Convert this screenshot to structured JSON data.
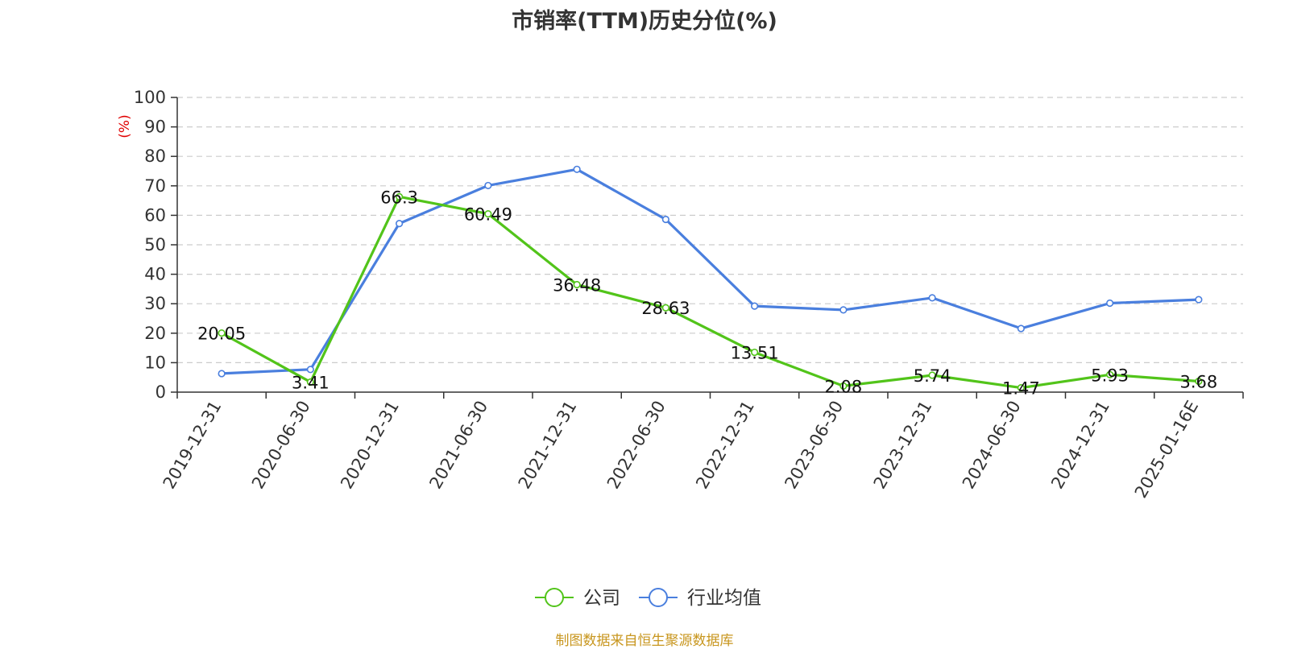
{
  "chart_data": {
    "type": "line",
    "title": "市销率(TTM)历史分位(%)",
    "ylabel": "(%)",
    "xlabel": "",
    "ylim": [
      0,
      100
    ],
    "y_ticks": [
      0,
      10,
      20,
      30,
      40,
      50,
      60,
      70,
      80,
      90,
      100
    ],
    "grid": true,
    "legend_position": "bottom-center",
    "categories": [
      "2019-12-31",
      "2020-06-30",
      "2020-12-31",
      "2021-06-30",
      "2021-12-31",
      "2022-06-30",
      "2022-12-31",
      "2023-06-30",
      "2023-12-31",
      "2024-06-30",
      "2024-12-31",
      "2025-01-16E"
    ],
    "series": [
      {
        "name": "公司",
        "color": "#52c41a",
        "values": [
          20.05,
          3.41,
          66.3,
          60.49,
          36.48,
          28.63,
          13.51,
          2.08,
          5.74,
          1.47,
          5.93,
          3.68
        ],
        "labels": [
          "20.05",
          "3.41",
          "66.3",
          "60.49",
          "36.48",
          "28.63",
          "13.51",
          "2.08",
          "5.74",
          "1.47",
          "5.93",
          "3.68"
        ]
      },
      {
        "name": "行业均值",
        "color": "#4a7fde",
        "values": [
          6.3,
          7.7,
          57.2,
          70.1,
          75.6,
          58.6,
          29.2,
          27.9,
          32.0,
          21.6,
          30.2,
          31.4
        ]
      }
    ]
  },
  "footer": {
    "source": "制图数据来自恒生聚源数据库"
  },
  "colors": {
    "axis_label_color": "#e00000",
    "gridline": "#cccccc",
    "footer": "#c8961e"
  }
}
